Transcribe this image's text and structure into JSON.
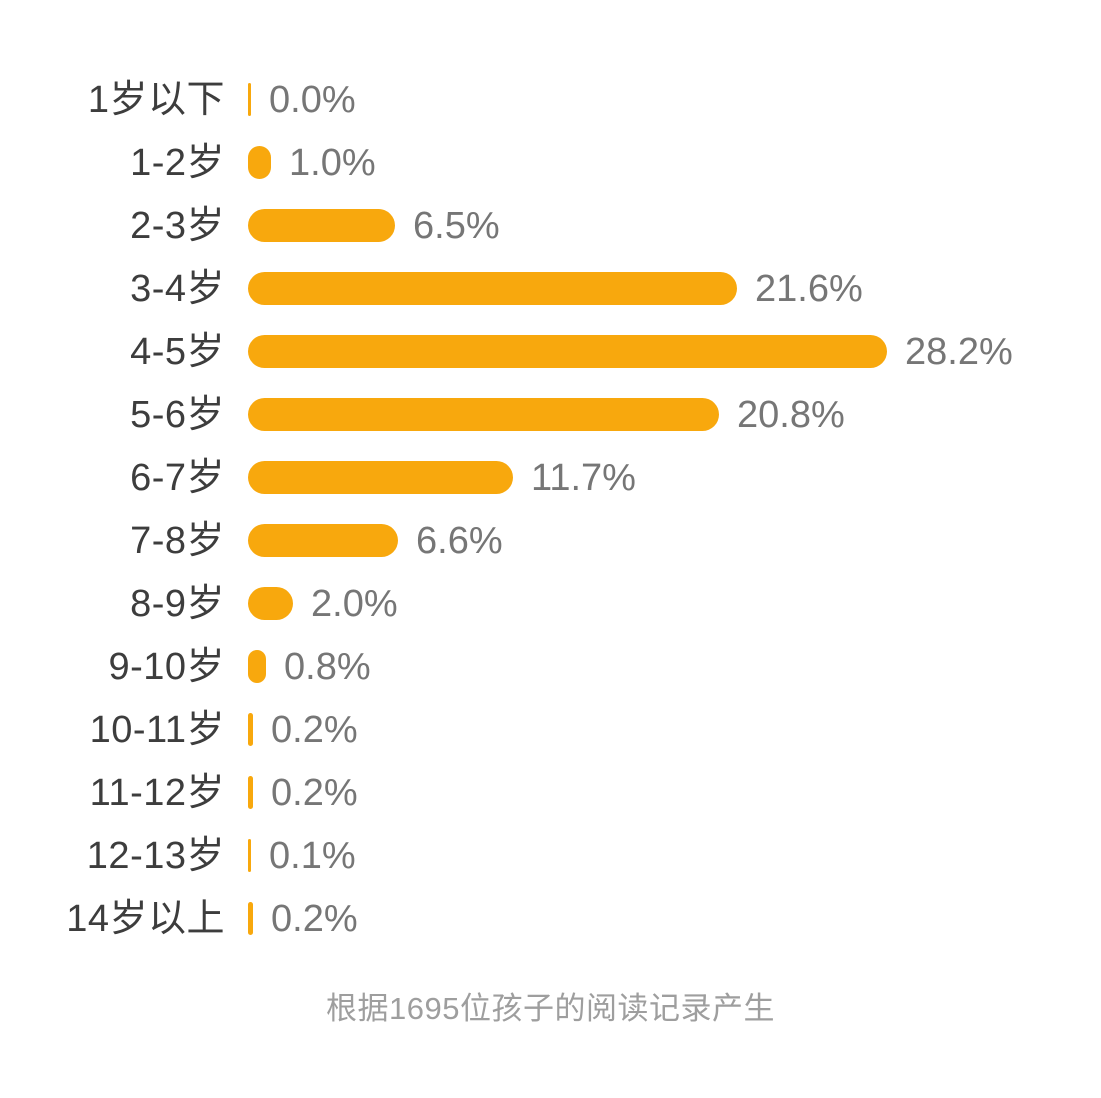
{
  "chart_data": {
    "type": "bar",
    "orientation": "horizontal",
    "title": "",
    "xlabel": "",
    "ylabel": "",
    "unit": "%",
    "xlim": [
      0,
      28.2
    ],
    "grid": false,
    "legend": false,
    "categories": [
      "1岁以下",
      "1-2岁",
      "2-3岁",
      "3-4岁",
      "4-5岁",
      "5-6岁",
      "6-7岁",
      "7-8岁",
      "8-9岁",
      "9-10岁",
      "10-11岁",
      "11-12岁",
      "12-13岁",
      "14岁以上"
    ],
    "values": [
      0.0,
      1.0,
      6.5,
      21.6,
      28.2,
      20.8,
      11.7,
      6.6,
      2.0,
      0.8,
      0.2,
      0.2,
      0.1,
      0.2
    ],
    "value_labels": [
      "0.0%",
      "1.0%",
      "6.5%",
      "21.6%",
      "28.2%",
      "20.8%",
      "11.7%",
      "6.6%",
      "2.0%",
      "0.8%",
      "0.2%",
      "0.2%",
      "0.1%",
      "0.2%"
    ],
    "bar_color": "#F8A80D",
    "category_label_color": "#3D3D3D",
    "value_label_color": "#767676"
  },
  "footer": {
    "text": "根据1695位孩子的阅读记录产生",
    "color": "#9E9E9E"
  }
}
